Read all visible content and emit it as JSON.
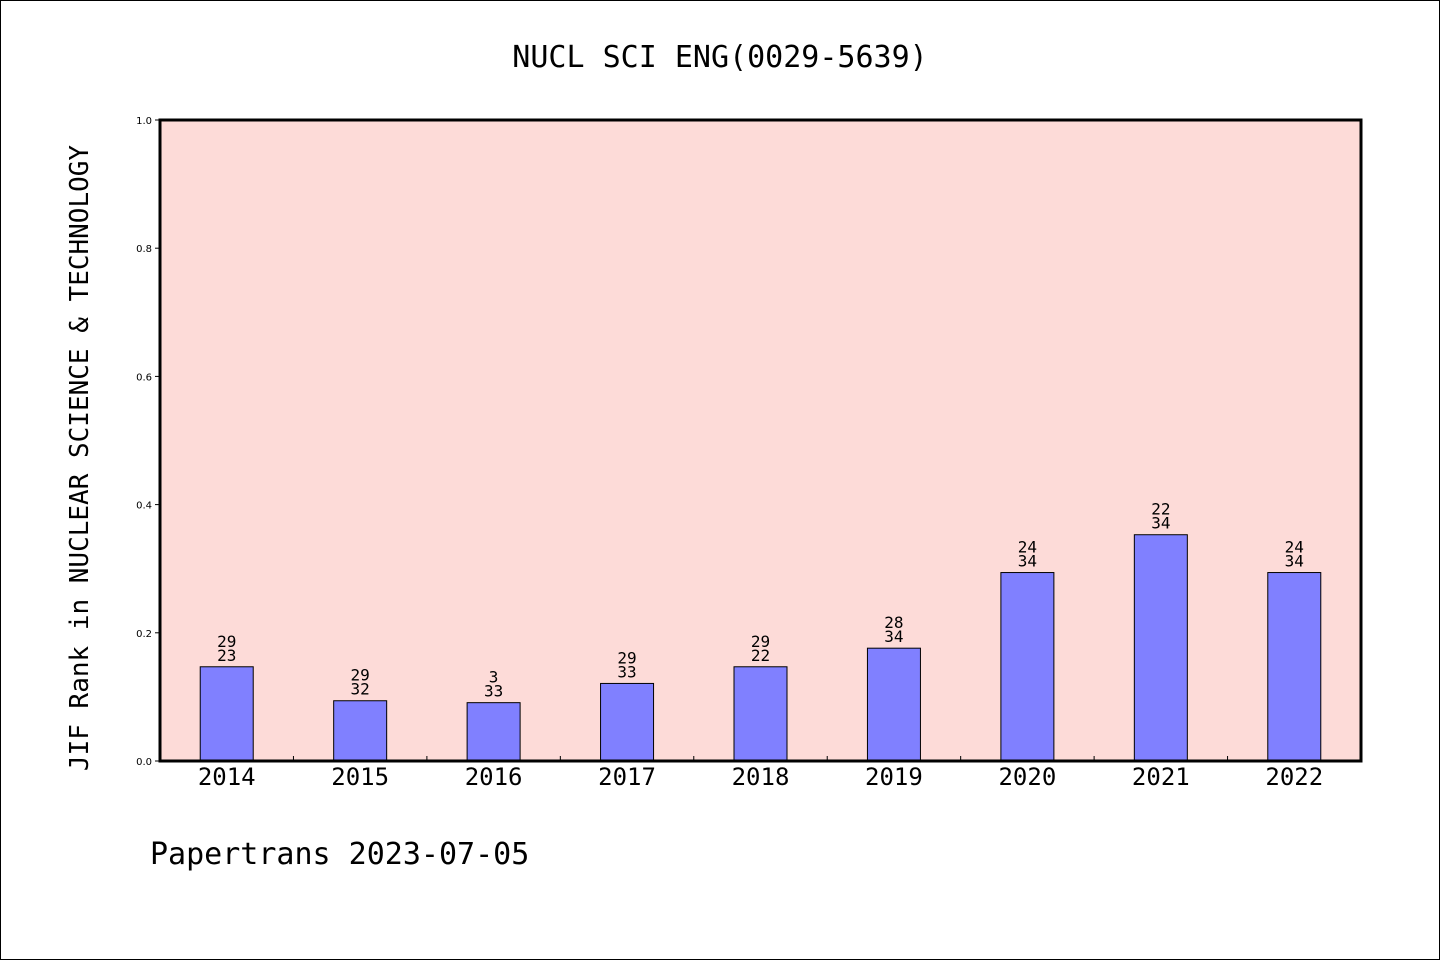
{
  "chart_data": {
    "type": "bar",
    "title": "NUCL SCI ENG(0029-5639)",
    "xlabel": "",
    "ylabel": "JIF Rank in NUCLEAR SCIENCE & TECHNOLOGY",
    "ylim": [
      0,
      1.0
    ],
    "yticks": [
      "0.0",
      "0.2",
      "0.4",
      "0.6",
      "0.8",
      "1.0"
    ],
    "categories": [
      "2014",
      "2015",
      "2016",
      "2017",
      "2018",
      "2019",
      "2020",
      "2021",
      "2022"
    ],
    "values": [
      0.147,
      0.094,
      0.091,
      0.121,
      0.147,
      0.176,
      0.294,
      0.353,
      0.294
    ],
    "labels_top": [
      "29",
      "29",
      "3",
      "29",
      "29",
      "28",
      "24",
      "22",
      "24"
    ],
    "labels_bottom": [
      "23",
      "32",
      "33",
      "33",
      "22",
      "34",
      "34",
      "34",
      "34"
    ],
    "grid": false,
    "colors": {
      "bar": "#8080ff",
      "plot_bg": "#fddbd8",
      "axis": "#000000"
    }
  },
  "footer": "Papertrans 2023-07-05"
}
